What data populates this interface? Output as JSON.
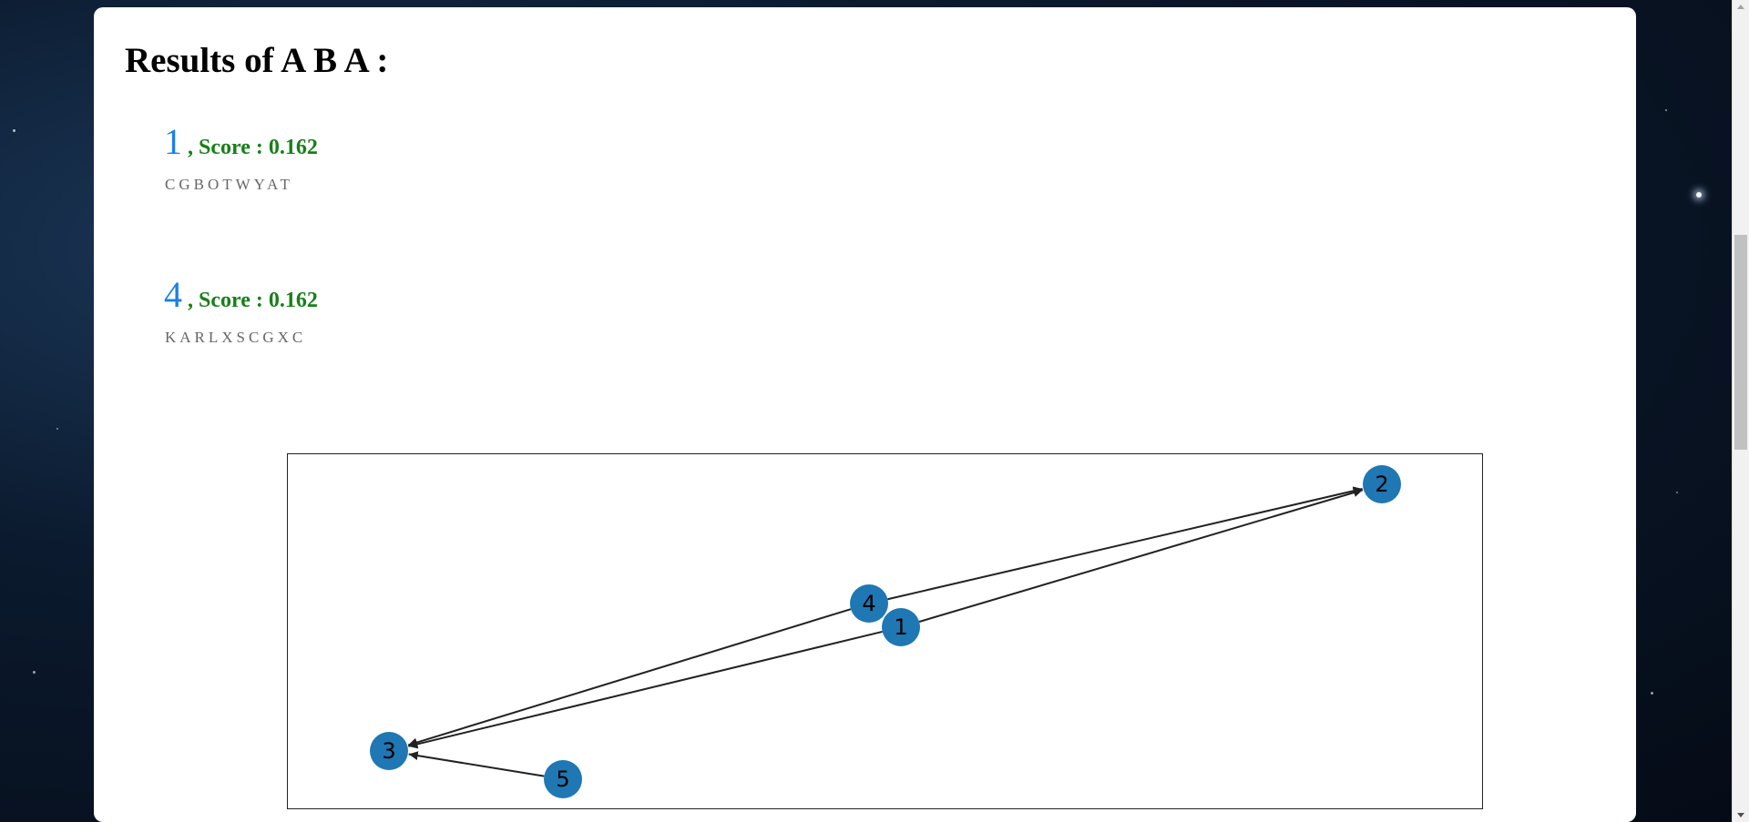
{
  "page": {
    "title": "Results of A B A :"
  },
  "results": [
    {
      "rank": "1",
      "score_label": ", Score : 0.162",
      "sequence": "CGBOTWYAT"
    },
    {
      "rank": "4",
      "score_label": ", Score : 0.162",
      "sequence": "KARLXSCGXC"
    }
  ],
  "graph": {
    "node_color": "#1f77b4",
    "edge_color": "#222222",
    "nodes": [
      {
        "id": "1",
        "label": "1"
      },
      {
        "id": "2",
        "label": "2"
      },
      {
        "id": "3",
        "label": "3"
      },
      {
        "id": "4",
        "label": "4"
      },
      {
        "id": "5",
        "label": "5"
      }
    ],
    "edges": [
      {
        "from": "1",
        "to": "2"
      },
      {
        "from": "4",
        "to": "2"
      },
      {
        "from": "1",
        "to": "3"
      },
      {
        "from": "4",
        "to": "3"
      },
      {
        "from": "5",
        "to": "3"
      }
    ]
  },
  "colors": {
    "rank": "#1a7fe8",
    "score": "#178017",
    "sequence": "#666666"
  }
}
